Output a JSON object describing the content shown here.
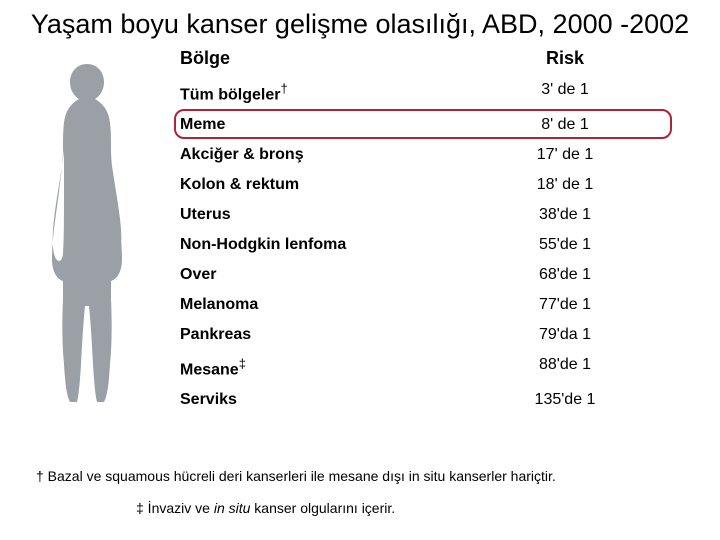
{
  "title": "Yaşam boyu kanser gelişme olasılığı, ABD, 2000 -2002",
  "headers": {
    "region": "Bölge",
    "risk": "Risk"
  },
  "rows": [
    {
      "region": "Tüm bölgeler",
      "dagger": "†",
      "risk": "3' de 1"
    },
    {
      "region": "Meme",
      "risk": "8' de 1"
    },
    {
      "region": "Akciğer & bronş",
      "risk": "17' de 1"
    },
    {
      "region": "Kolon & rektum",
      "risk": "18' de 1"
    },
    {
      "region": "Uterus",
      "risk": "38'de 1"
    },
    {
      "region": "Non-Hodgkin lenfoma",
      "risk": "55'de 1"
    },
    {
      "region": "Over",
      "risk": "68'de 1"
    },
    {
      "region": "Melanoma",
      "risk": "77'de 1"
    },
    {
      "region": "Pankreas",
      "risk": "79'da 1"
    },
    {
      "region": "Mesane",
      "dagger": "‡",
      "risk": "88'de 1"
    },
    {
      "region": "Serviks",
      "risk": "135'de 1"
    }
  ],
  "footnote1_pre": "† Bazal ve  squamous hücreli deri kanserleri ile mesane dışı  in situ kanserler hariçtir.",
  "footnote2_pre": "‡ İnvaziv ve ",
  "footnote2_italic": "in situ",
  "footnote2_post": " kanser olgularını içerir.",
  "highlight_index": 1,
  "colors": {
    "highlight_border": "#b22234",
    "silhouette_fill": "#9aa0a6",
    "text": "#000000",
    "bg": "#ffffff"
  }
}
